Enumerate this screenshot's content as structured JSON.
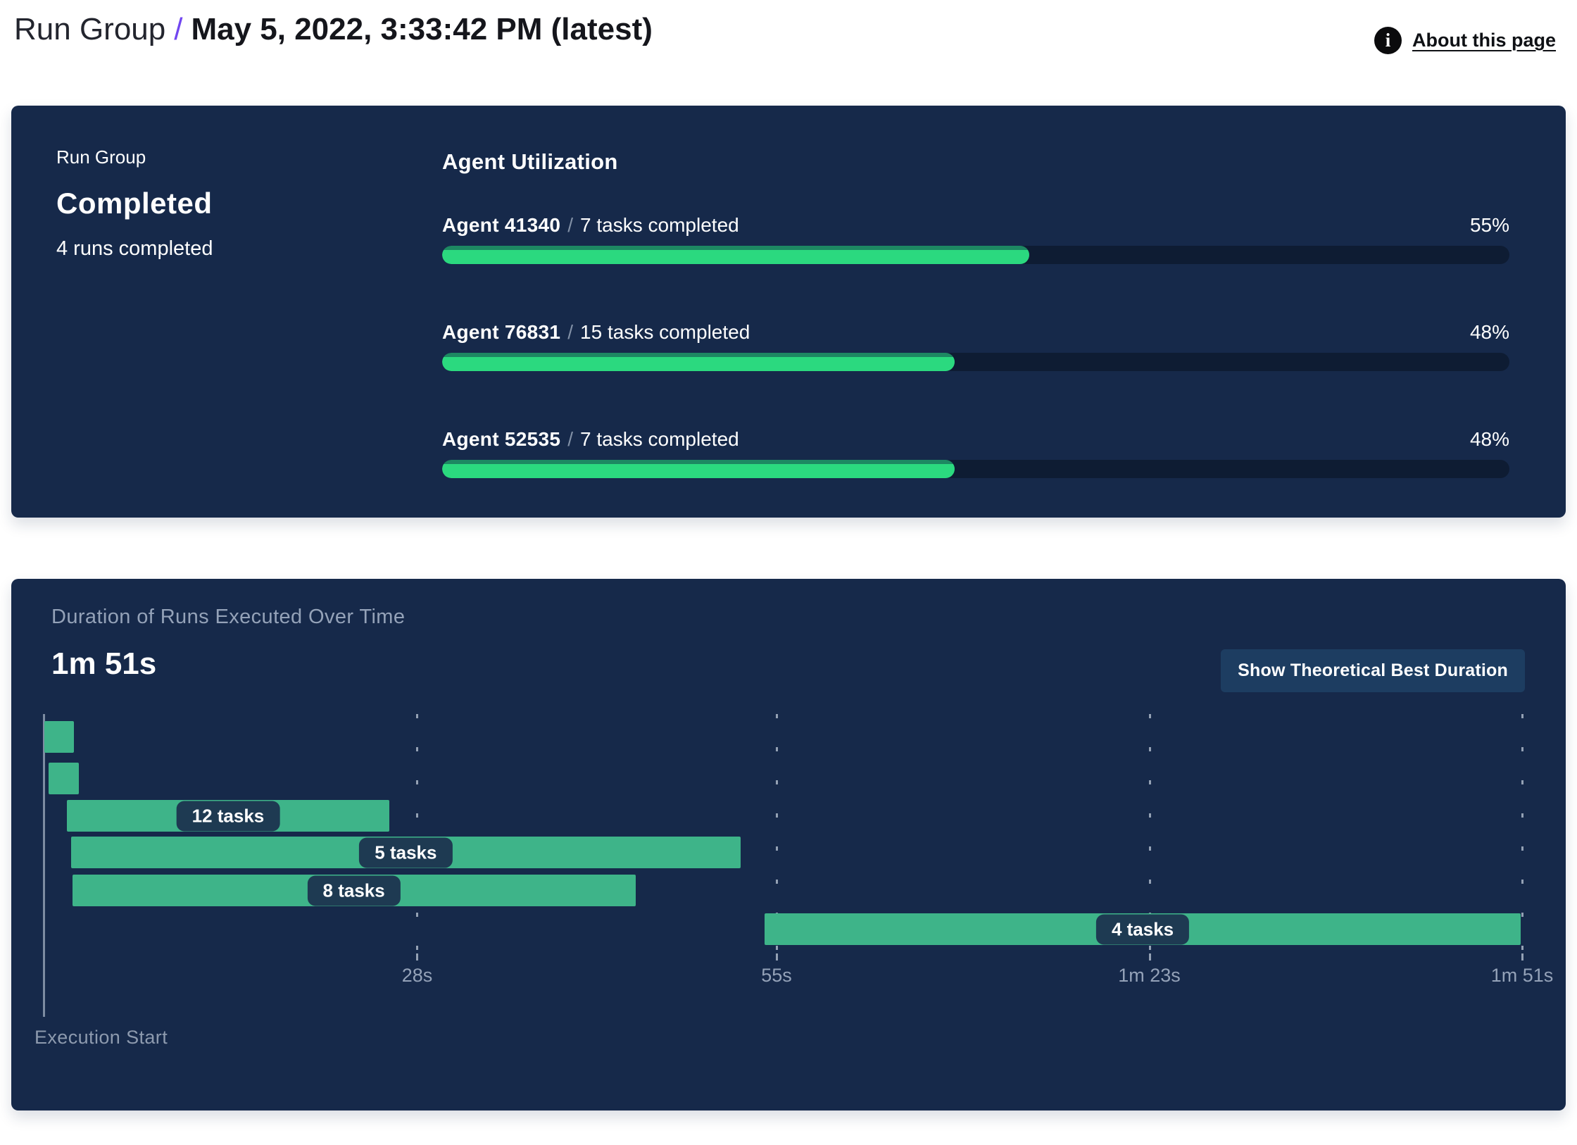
{
  "header": {
    "breadcrumb_root": "Run Group",
    "separator": "/",
    "title": "May 5, 2022, 3:33:42 PM (latest)",
    "info_glyph": "i",
    "about_link": "About this page"
  },
  "summary": {
    "label": "Run Group",
    "status": "Completed",
    "runs_completed": "4 runs completed",
    "utilization_title": "Agent Utilization",
    "slash": "/",
    "agents": [
      {
        "name": "Agent 41340",
        "tasks": "7 tasks completed",
        "percent": "55%",
        "value": 55
      },
      {
        "name": "Agent 76831",
        "tasks": "15 tasks completed",
        "percent": "48%",
        "value": 48
      },
      {
        "name": "Agent 52535",
        "tasks": "7 tasks completed",
        "percent": "48%",
        "value": 48
      }
    ]
  },
  "duration": {
    "title": "Duration of Runs Executed Over Time",
    "total_duration": "1m 51s",
    "button_label": "Show Theoretical Best Duration",
    "axis_label": "Execution Start"
  },
  "colors": {
    "panel_bg": "#16294a",
    "progress_fill": "#2bd97f",
    "progress_fill_shade": "#1d8862",
    "progress_track": "#0e1c33",
    "gantt_bar": "#3eb489",
    "pill_bg": "#1e3a52",
    "button_bg": "#1d3d61",
    "accent_purple": "#7146f0",
    "muted_slate": "#94a2b8"
  },
  "chart_data": {
    "type": "bar",
    "variant": "gantt-timeline",
    "title": "Duration of Runs Executed Over Time",
    "total_duration_label": "1m 51s",
    "xlabel": "Execution Start",
    "time_axis": {
      "unit": "seconds",
      "range": [
        0,
        111
      ],
      "ticks": [
        {
          "label": "28s",
          "seconds": 28
        },
        {
          "label": "55s",
          "seconds": 55
        },
        {
          "label": "1m 23s",
          "seconds": 83
        },
        {
          "label": "1m 51s",
          "seconds": 111
        }
      ]
    },
    "bars": [
      {
        "label": "",
        "start_s": 0.0,
        "end_s": 2.2
      },
      {
        "label": "",
        "start_s": 0.3,
        "end_s": 2.6
      },
      {
        "label": "12 tasks",
        "start_s": 1.7,
        "end_s": 25.9
      },
      {
        "label": "5 tasks",
        "start_s": 2.0,
        "end_s": 52.3
      },
      {
        "label": "8 tasks",
        "start_s": 2.1,
        "end_s": 44.4
      },
      {
        "label": "4 tasks",
        "start_s": 54.1,
        "end_s": 110.9
      }
    ]
  }
}
